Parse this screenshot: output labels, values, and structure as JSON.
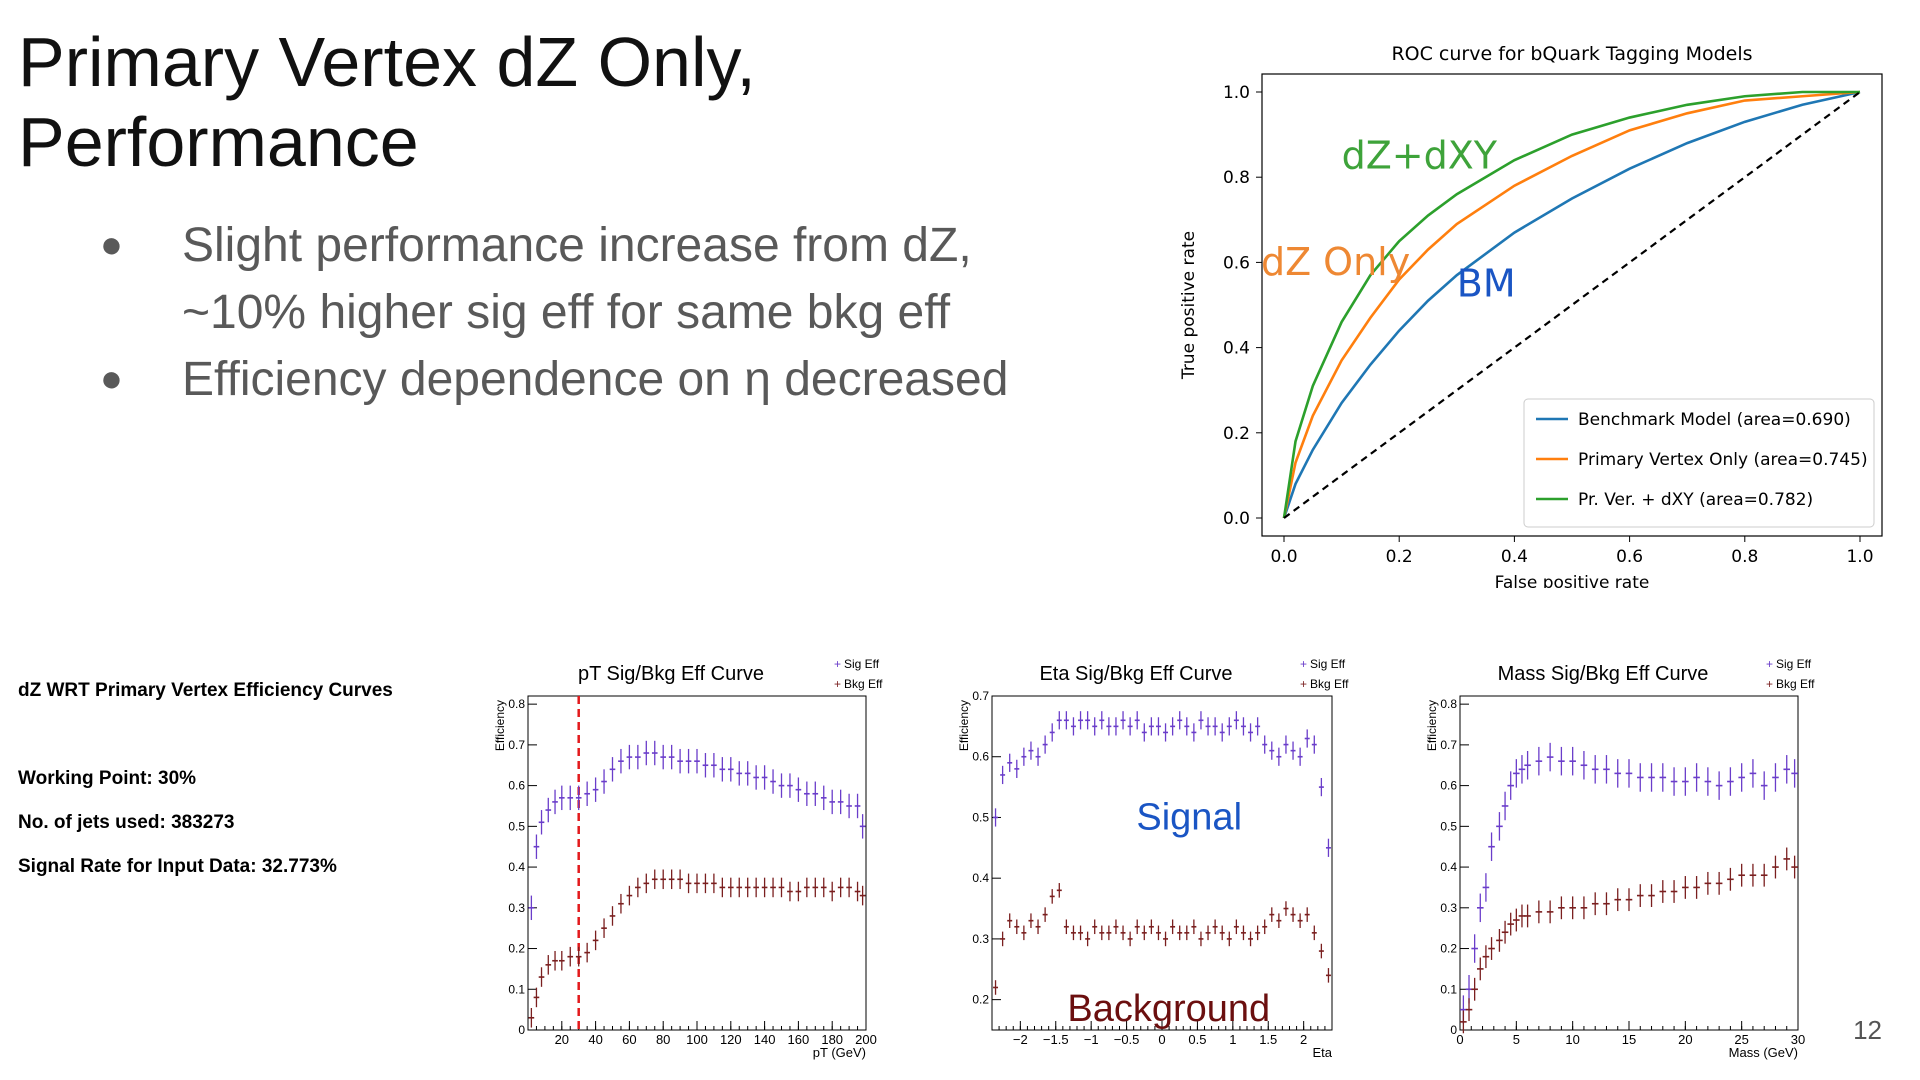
{
  "slide": {
    "title_line1": "Primary Vertex dZ Only,",
    "title_line2": "Performance",
    "bullets": [
      {
        "symbol": "●",
        "lines": [
          "Slight performance increase from dZ,",
          "~10% higher sig eff for same bkg eff"
        ]
      },
      {
        "symbol": "●",
        "lines": [
          "Efficiency dependence on η decreased"
        ]
      }
    ],
    "side_info": {
      "heading": "dZ WRT Primary Vertex Efficiency Curves",
      "working_point": "Working Point: 30%",
      "jets": "No. of jets used: 383273",
      "signal_rate": "Signal Rate for Input Data: 32.773%"
    },
    "page_number": "12"
  },
  "chart_data": [
    {
      "id": "roc",
      "type": "line",
      "title": "ROC curve for bQuark Tagging Models",
      "xlabel": "False positive rate",
      "ylabel": "True positive rate",
      "xlim": [
        0,
        1
      ],
      "ylim": [
        0,
        1
      ],
      "xticks": [
        "0.0",
        "0.2",
        "0.4",
        "0.6",
        "0.8",
        "1.0"
      ],
      "yticks": [
        "0.0",
        "0.2",
        "0.4",
        "0.6",
        "0.8",
        "1.0"
      ],
      "legend_position": "bottom-right",
      "series": [
        {
          "name": "Benchmark Model (area=0.690)",
          "color": "#1f77b4",
          "x": [
            0,
            0.02,
            0.05,
            0.1,
            0.15,
            0.2,
            0.25,
            0.3,
            0.4,
            0.5,
            0.6,
            0.7,
            0.8,
            0.9,
            1.0
          ],
          "y": [
            0,
            0.08,
            0.16,
            0.27,
            0.36,
            0.44,
            0.51,
            0.57,
            0.67,
            0.75,
            0.82,
            0.88,
            0.93,
            0.97,
            1.0
          ]
        },
        {
          "name": "Primary Vertex Only (area=0.745)",
          "color": "#ff7f0e",
          "x": [
            0,
            0.02,
            0.05,
            0.1,
            0.15,
            0.2,
            0.25,
            0.3,
            0.4,
            0.5,
            0.6,
            0.7,
            0.8,
            0.9,
            1.0
          ],
          "y": [
            0,
            0.13,
            0.24,
            0.37,
            0.47,
            0.56,
            0.63,
            0.69,
            0.78,
            0.85,
            0.91,
            0.95,
            0.98,
            0.99,
            1.0
          ]
        },
        {
          "name": "Pr. Ver. + dXY (area=0.782)",
          "color": "#2ca02c",
          "x": [
            0,
            0.02,
            0.05,
            0.1,
            0.15,
            0.2,
            0.25,
            0.3,
            0.4,
            0.5,
            0.6,
            0.7,
            0.8,
            0.9,
            1.0
          ],
          "y": [
            0,
            0.18,
            0.31,
            0.46,
            0.57,
            0.65,
            0.71,
            0.76,
            0.84,
            0.9,
            0.94,
            0.97,
            0.99,
            1.0,
            1.0
          ]
        },
        {
          "name": "",
          "color": "#000000",
          "dashed": true,
          "x": [
            0,
            1
          ],
          "y": [
            0,
            1
          ]
        }
      ],
      "annotations": [
        {
          "text": "dZ+dXY",
          "color": "#3ea33a",
          "x": 0.1,
          "y": 0.82
        },
        {
          "text": "dZ Only",
          "color": "#ee8833",
          "x": -0.04,
          "y": 0.57
        },
        {
          "text": "BM",
          "color": "#1a55c4",
          "x": 0.3,
          "y": 0.52
        }
      ]
    },
    {
      "id": "pt",
      "type": "scatter",
      "title": "pT Sig/Bkg Eff Curve",
      "xlabel": "pT (GeV)",
      "ylabel": "Efficiency",
      "xlim": [
        0,
        200
      ],
      "ylim": [
        0,
        0.82
      ],
      "xticks": [
        "20",
        "40",
        "60",
        "80",
        "100",
        "120",
        "140",
        "160",
        "180",
        "200"
      ],
      "yticks": [
        "0",
        "0.1",
        "0.2",
        "0.3",
        "0.4",
        "0.5",
        "0.6",
        "0.7",
        "0.8"
      ],
      "legend": [
        "Sig Eff",
        "Bkg Eff"
      ],
      "cut_line_x": 30,
      "series": [
        {
          "name": "Sig Eff",
          "color": "#6a3dca",
          "x": [
            2,
            5,
            8,
            12,
            16,
            20,
            25,
            30,
            35,
            40,
            45,
            50,
            55,
            60,
            65,
            70,
            75,
            80,
            85,
            90,
            95,
            100,
            105,
            110,
            115,
            120,
            125,
            130,
            135,
            140,
            145,
            150,
            155,
            160,
            165,
            170,
            175,
            180,
            185,
            190,
            195,
            198
          ],
          "y": [
            0.3,
            0.45,
            0.51,
            0.54,
            0.56,
            0.57,
            0.57,
            0.57,
            0.58,
            0.59,
            0.61,
            0.64,
            0.66,
            0.67,
            0.67,
            0.68,
            0.68,
            0.67,
            0.67,
            0.66,
            0.66,
            0.66,
            0.65,
            0.65,
            0.64,
            0.64,
            0.63,
            0.63,
            0.62,
            0.62,
            0.61,
            0.6,
            0.6,
            0.59,
            0.58,
            0.58,
            0.57,
            0.56,
            0.56,
            0.55,
            0.55,
            0.5
          ]
        },
        {
          "name": "Bkg Eff",
          "color": "#7a1f1f",
          "x": [
            2,
            5,
            8,
            12,
            16,
            20,
            25,
            30,
            35,
            40,
            45,
            50,
            55,
            60,
            65,
            70,
            75,
            80,
            85,
            90,
            95,
            100,
            105,
            110,
            115,
            120,
            125,
            130,
            135,
            140,
            145,
            150,
            155,
            160,
            165,
            170,
            175,
            180,
            185,
            190,
            195,
            198
          ],
          "y": [
            0.03,
            0.08,
            0.13,
            0.16,
            0.17,
            0.17,
            0.18,
            0.18,
            0.19,
            0.22,
            0.25,
            0.28,
            0.31,
            0.33,
            0.35,
            0.36,
            0.37,
            0.37,
            0.37,
            0.37,
            0.36,
            0.36,
            0.36,
            0.36,
            0.35,
            0.35,
            0.35,
            0.35,
            0.35,
            0.35,
            0.35,
            0.35,
            0.34,
            0.34,
            0.35,
            0.35,
            0.35,
            0.34,
            0.35,
            0.35,
            0.34,
            0.33
          ]
        }
      ]
    },
    {
      "id": "eta",
      "type": "scatter",
      "title": "Eta Sig/Bkg Eff Curve",
      "xlabel": "Eta",
      "ylabel": "Efficiency",
      "xlim": [
        -2.4,
        2.4
      ],
      "ylim": [
        0.15,
        0.7
      ],
      "xticks": [
        "−2",
        "−1.5",
        "−1",
        "−0.5",
        "0",
        "0.5",
        "1",
        "1.5",
        "2"
      ],
      "yticks": [
        "0.2",
        "0.3",
        "0.4",
        "0.5",
        "0.6",
        "0.7"
      ],
      "legend": [
        "Sig Eff",
        "Bkg Eff"
      ],
      "annotations": [
        {
          "text": "Signal",
          "color": "#1a55c4"
        },
        {
          "text": "Background",
          "color": "#6b0f0f"
        }
      ],
      "series": [
        {
          "name": "Sig Eff",
          "color": "#6a3dca",
          "x": [
            -2.35,
            -2.25,
            -2.15,
            -2.05,
            -1.95,
            -1.85,
            -1.75,
            -1.65,
            -1.55,
            -1.45,
            -1.35,
            -1.25,
            -1.15,
            -1.05,
            -0.95,
            -0.85,
            -0.75,
            -0.65,
            -0.55,
            -0.45,
            -0.35,
            -0.25,
            -0.15,
            -0.05,
            0.05,
            0.15,
            0.25,
            0.35,
            0.45,
            0.55,
            0.65,
            0.75,
            0.85,
            0.95,
            1.05,
            1.15,
            1.25,
            1.35,
            1.45,
            1.55,
            1.65,
            1.75,
            1.85,
            1.95,
            2.05,
            2.15,
            2.25,
            2.35
          ],
          "y": [
            0.5,
            0.57,
            0.59,
            0.58,
            0.6,
            0.61,
            0.6,
            0.62,
            0.64,
            0.66,
            0.66,
            0.65,
            0.66,
            0.66,
            0.65,
            0.66,
            0.65,
            0.65,
            0.66,
            0.65,
            0.66,
            0.64,
            0.65,
            0.65,
            0.64,
            0.65,
            0.66,
            0.65,
            0.64,
            0.66,
            0.65,
            0.65,
            0.64,
            0.65,
            0.66,
            0.65,
            0.64,
            0.65,
            0.62,
            0.61,
            0.6,
            0.62,
            0.61,
            0.6,
            0.63,
            0.62,
            0.55,
            0.45
          ]
        },
        {
          "name": "Bkg Eff",
          "color": "#7a1f1f",
          "x": [
            -2.35,
            -2.25,
            -2.15,
            -2.05,
            -1.95,
            -1.85,
            -1.75,
            -1.65,
            -1.55,
            -1.45,
            -1.35,
            -1.25,
            -1.15,
            -1.05,
            -0.95,
            -0.85,
            -0.75,
            -0.65,
            -0.55,
            -0.45,
            -0.35,
            -0.25,
            -0.15,
            -0.05,
            0.05,
            0.15,
            0.25,
            0.35,
            0.45,
            0.55,
            0.65,
            0.75,
            0.85,
            0.95,
            1.05,
            1.15,
            1.25,
            1.35,
            1.45,
            1.55,
            1.65,
            1.75,
            1.85,
            1.95,
            2.05,
            2.15,
            2.25,
            2.35
          ],
          "y": [
            0.22,
            0.3,
            0.33,
            0.32,
            0.31,
            0.33,
            0.32,
            0.34,
            0.37,
            0.38,
            0.32,
            0.31,
            0.31,
            0.3,
            0.32,
            0.31,
            0.31,
            0.32,
            0.31,
            0.3,
            0.32,
            0.31,
            0.32,
            0.31,
            0.3,
            0.32,
            0.31,
            0.31,
            0.32,
            0.3,
            0.31,
            0.32,
            0.31,
            0.3,
            0.32,
            0.31,
            0.3,
            0.31,
            0.32,
            0.34,
            0.33,
            0.35,
            0.34,
            0.33,
            0.34,
            0.31,
            0.28,
            0.24
          ]
        }
      ]
    },
    {
      "id": "mass",
      "type": "scatter",
      "title": "Mass Sig/Bkg Eff Curve",
      "xlabel": "Mass (GeV)",
      "ylabel": "Efficiency",
      "xlim": [
        0,
        30
      ],
      "ylim": [
        0,
        0.82
      ],
      "xticks": [
        "0",
        "5",
        "10",
        "15",
        "20",
        "25",
        "30"
      ],
      "yticks": [
        "0",
        "0.1",
        "0.2",
        "0.3",
        "0.4",
        "0.5",
        "0.6",
        "0.7",
        "0.8"
      ],
      "legend": [
        "Sig Eff",
        "Bkg Eff"
      ],
      "series": [
        {
          "name": "Sig Eff",
          "color": "#6a3dca",
          "x": [
            0.3,
            0.8,
            1.3,
            1.8,
            2.3,
            2.8,
            3.5,
            4,
            4.5,
            5,
            5.5,
            6,
            7,
            8,
            9,
            10,
            11,
            12,
            13,
            14,
            15,
            16,
            17,
            18,
            19,
            20,
            21,
            22,
            23,
            24,
            25,
            26,
            27,
            28,
            29,
            29.7
          ],
          "y": [
            0.05,
            0.1,
            0.2,
            0.3,
            0.35,
            0.45,
            0.5,
            0.55,
            0.6,
            0.63,
            0.64,
            0.65,
            0.66,
            0.67,
            0.66,
            0.66,
            0.65,
            0.64,
            0.64,
            0.63,
            0.63,
            0.62,
            0.62,
            0.62,
            0.61,
            0.61,
            0.62,
            0.61,
            0.6,
            0.61,
            0.62,
            0.63,
            0.6,
            0.62,
            0.64,
            0.63
          ]
        },
        {
          "name": "Bkg Eff",
          "color": "#7a1f1f",
          "x": [
            0.3,
            0.8,
            1.3,
            1.8,
            2.3,
            2.8,
            3.5,
            4,
            4.5,
            5,
            5.5,
            6,
            7,
            8,
            9,
            10,
            11,
            12,
            13,
            14,
            15,
            16,
            17,
            18,
            19,
            20,
            21,
            22,
            23,
            24,
            25,
            26,
            27,
            28,
            29,
            29.7
          ],
          "y": [
            0.02,
            0.05,
            0.1,
            0.15,
            0.18,
            0.2,
            0.22,
            0.24,
            0.26,
            0.27,
            0.28,
            0.28,
            0.29,
            0.29,
            0.3,
            0.3,
            0.3,
            0.31,
            0.31,
            0.32,
            0.32,
            0.33,
            0.33,
            0.34,
            0.34,
            0.35,
            0.35,
            0.36,
            0.36,
            0.37,
            0.38,
            0.38,
            0.38,
            0.4,
            0.42,
            0.4
          ]
        }
      ]
    }
  ]
}
